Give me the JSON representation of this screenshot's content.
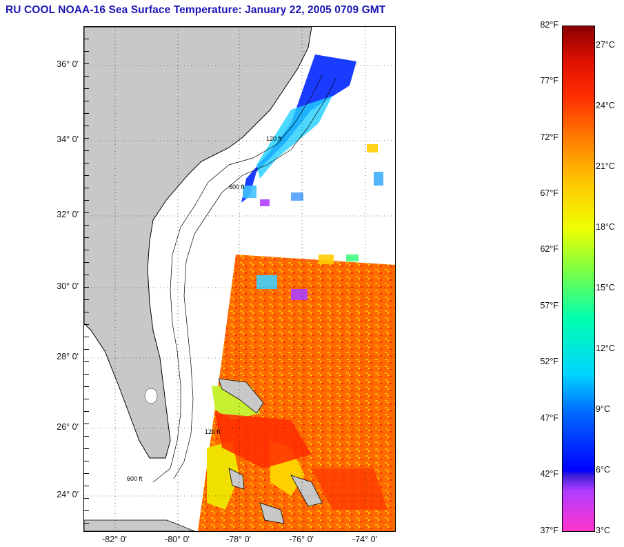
{
  "title": "RU COOL  NOAA-16  Sea Surface Temperature:  January 22, 2005 0709 GMT",
  "map": {
    "latitude_labels": [
      "36° 0'",
      "34° 0'",
      "32° 0'",
      "30° 0'",
      "28° 0'",
      "26° 0'",
      "24° 0'"
    ],
    "longitude_labels": [
      "-82° 0'",
      "-80° 0'",
      "-78° 0'",
      "-76° 0'",
      "-74° 0'"
    ],
    "contour_labels": [
      "120 ft",
      "600 ft"
    ],
    "colors": {
      "land": "#c8c8c8",
      "no_data": "#ffffff",
      "graticule": "#000000"
    }
  },
  "colorbar": {
    "fahrenheit_labels": [
      "82°F",
      "77°F",
      "72°F",
      "67°F",
      "62°F",
      "57°F",
      "52°F",
      "47°F",
      "42°F",
      "37°F"
    ],
    "celsius_labels": [
      "27°C",
      "24°C",
      "21°C",
      "18°C",
      "15°C",
      "12°C",
      "9°C",
      "6°C",
      "3°C"
    ]
  }
}
